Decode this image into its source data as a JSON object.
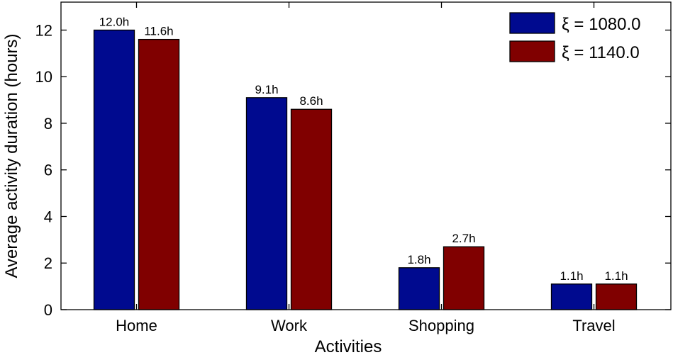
{
  "chart_data": {
    "type": "bar",
    "categories": [
      "Home",
      "Work",
      "Shopping",
      "Travel"
    ],
    "series": [
      {
        "name": "ξ = 1080.0",
        "color": "#000a8f",
        "values": [
          12.0,
          9.1,
          1.8,
          1.1
        ],
        "labels": [
          "12.0h",
          "9.1h",
          "1.8h",
          "1.1h"
        ]
      },
      {
        "name": "ξ = 1140.0",
        "color": "#800000",
        "values": [
          11.6,
          8.6,
          2.7,
          1.1
        ],
        "labels": [
          "11.6h",
          "8.6h",
          "2.7h",
          "1.1h"
        ]
      }
    ],
    "xlabel": "Activities",
    "ylabel": "Average activity duration (hours)",
    "ylim": [
      0,
      13.2
    ],
    "yticks": [
      0,
      2,
      4,
      6,
      8,
      10,
      12
    ],
    "legend_position": "top-right",
    "grid": false
  }
}
